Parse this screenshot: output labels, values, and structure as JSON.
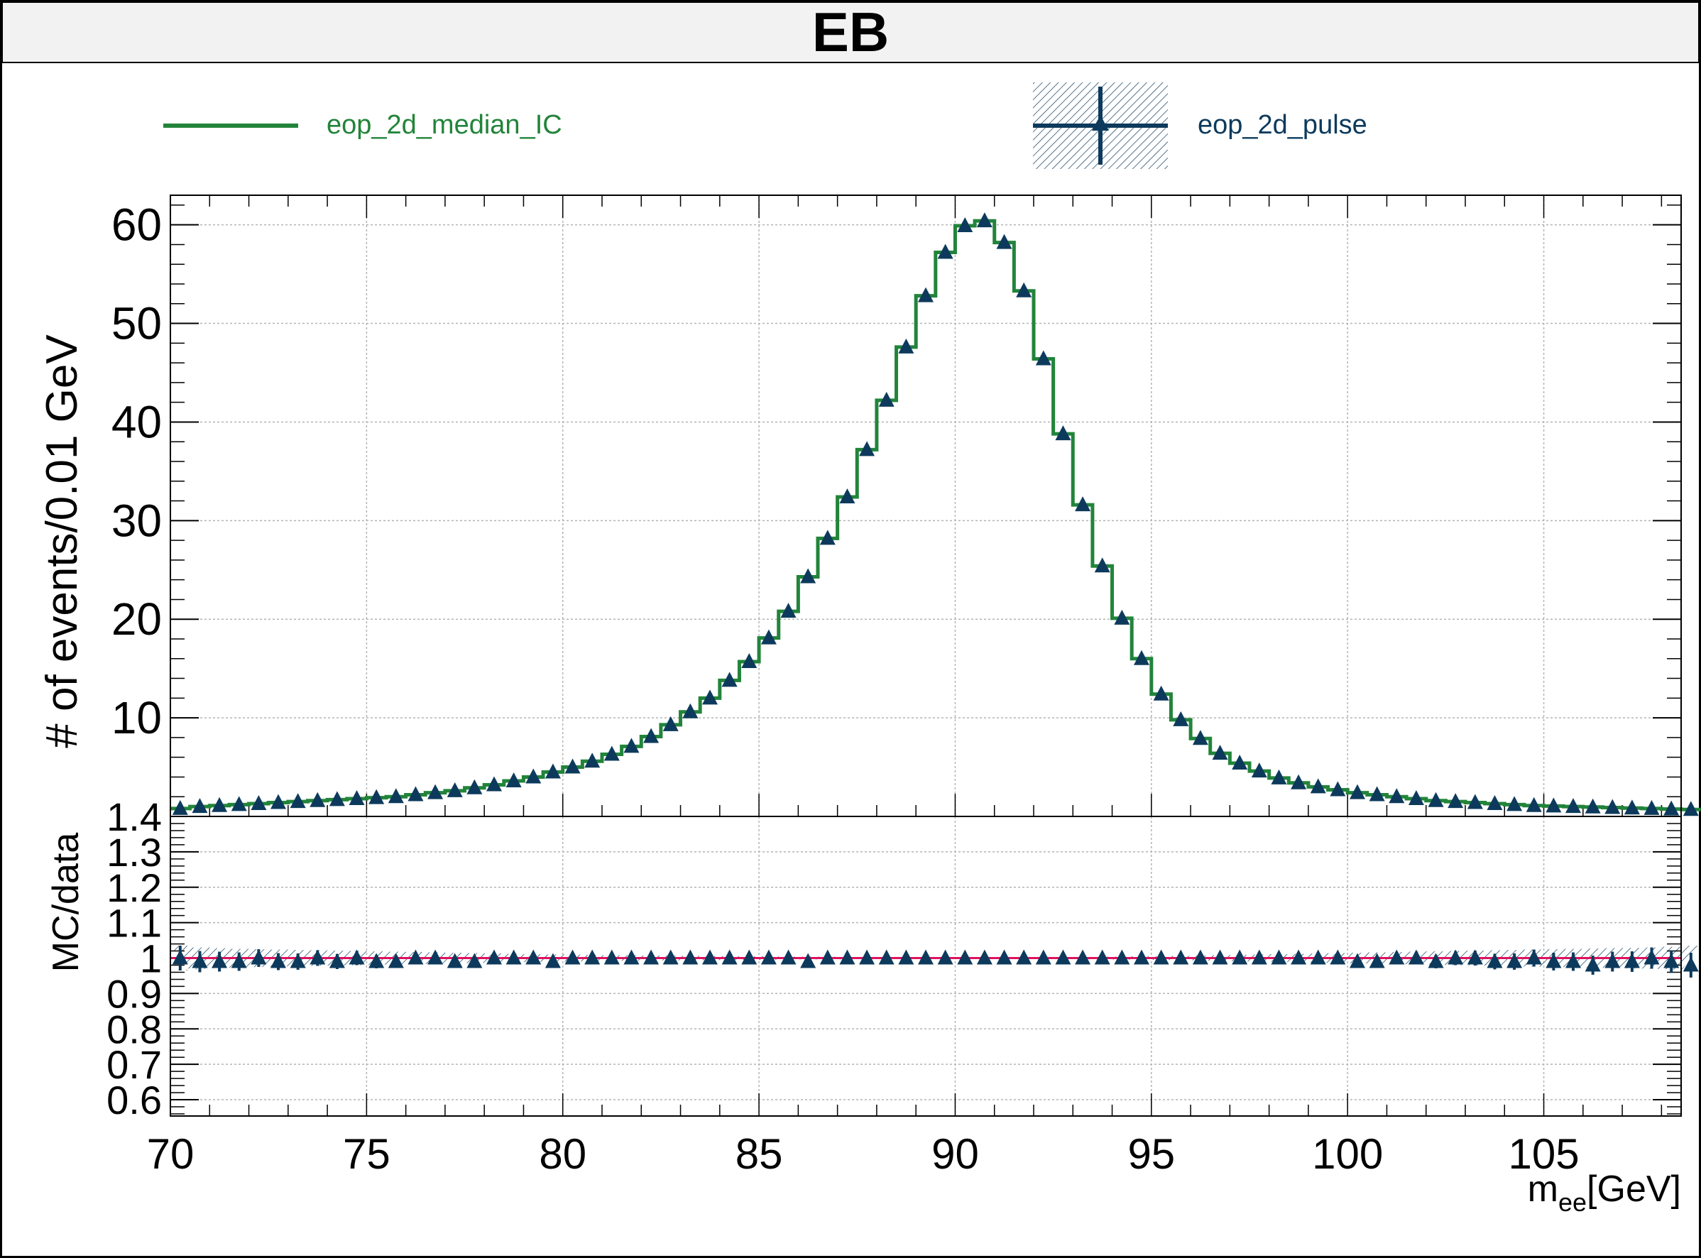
{
  "title": "EB",
  "legend": {
    "items": [
      {
        "label": "eop_2d_median_IC",
        "color": "#22843a",
        "style": "line"
      },
      {
        "label": "eop_2d_pulse",
        "color": "#0d3a5c",
        "style": "marker-band"
      }
    ]
  },
  "colors": {
    "median_ic": "#22843a",
    "pulse": "#0d3a5c",
    "unity_line": "#e0115f",
    "grid": "#b4b4b4",
    "frame": "#000000"
  },
  "chart_data": [
    {
      "type": "line",
      "title": "EB",
      "xlabel": "",
      "ylabel": "# of events/0.01 GeV",
      "xlim": [
        70,
        108.5
      ],
      "ylim": [
        0,
        63
      ],
      "x_ticks": [
        "70",
        "75",
        "80",
        "85",
        "90",
        "95",
        "100",
        "105"
      ],
      "y_ticks": [
        "10",
        "20",
        "30",
        "40",
        "50",
        "60"
      ],
      "grid": true,
      "legend_position": "top",
      "bin_edges_start": 70.0,
      "bin_width": 0.5,
      "series": [
        {
          "name": "eop_2d_median_IC",
          "style": "step",
          "values": [
            0.8,
            1.0,
            1.1,
            1.2,
            1.3,
            1.4,
            1.5,
            1.6,
            1.7,
            1.8,
            1.9,
            2.0,
            2.2,
            2.4,
            2.6,
            2.9,
            3.2,
            3.6,
            4.0,
            4.5,
            5.0,
            5.6,
            6.3,
            7.1,
            8.1,
            9.3,
            10.6,
            12.0,
            13.8,
            15.7,
            18.1,
            20.8,
            24.3,
            28.2,
            32.4,
            37.2,
            42.2,
            47.6,
            52.8,
            57.2,
            59.9,
            60.4,
            58.2,
            53.3,
            46.4,
            38.8,
            31.6,
            25.4,
            20.1,
            16.0,
            12.4,
            9.8,
            7.9,
            6.4,
            5.4,
            4.6,
            3.9,
            3.4,
            3.0,
            2.7,
            2.4,
            2.2,
            2.0,
            1.8,
            1.6,
            1.5,
            1.4,
            1.3,
            1.2,
            1.1,
            1.05,
            1.0,
            0.95,
            0.9,
            0.85,
            0.8,
            0.75,
            0.7
          ]
        },
        {
          "name": "eop_2d_pulse",
          "style": "markers",
          "values": [
            0.8,
            1.0,
            1.1,
            1.2,
            1.3,
            1.4,
            1.5,
            1.6,
            1.7,
            1.8,
            1.9,
            2.0,
            2.2,
            2.4,
            2.6,
            2.9,
            3.2,
            3.6,
            4.0,
            4.5,
            5.0,
            5.6,
            6.3,
            7.1,
            8.1,
            9.3,
            10.6,
            12.0,
            13.8,
            15.7,
            18.1,
            20.8,
            24.3,
            28.2,
            32.4,
            37.2,
            42.2,
            47.6,
            52.8,
            57.2,
            59.9,
            60.4,
            58.2,
            53.3,
            46.4,
            38.8,
            31.6,
            25.4,
            20.1,
            16.0,
            12.4,
            9.8,
            7.9,
            6.4,
            5.4,
            4.6,
            3.9,
            3.4,
            3.0,
            2.7,
            2.4,
            2.2,
            2.0,
            1.8,
            1.6,
            1.5,
            1.4,
            1.3,
            1.2,
            1.1,
            1.05,
            1.0,
            0.95,
            0.9,
            0.85,
            0.8,
            0.75,
            0.7
          ]
        }
      ]
    },
    {
      "type": "scatter",
      "title": "",
      "xlabel": "m_ee[GeV]",
      "xlabel_main": "m",
      "xlabel_sub": "ee",
      "xlabel_unit": "[GeV]",
      "ylabel": "MC/data",
      "xlim": [
        70,
        108.5
      ],
      "ylim": [
        0.55,
        1.4
      ],
      "x_ticks": [
        "70",
        "75",
        "80",
        "85",
        "90",
        "95",
        "100",
        "105"
      ],
      "y_ticks": [
        "0.6",
        "0.7",
        "0.8",
        "0.9",
        "1",
        "1.1",
        "1.2",
        "1.3",
        "1.4"
      ],
      "grid": true,
      "reference_line": 1.0,
      "series": [
        {
          "name": "eop_2d_pulse",
          "style": "markers-with-errors",
          "values": [
            1.0,
            0.99,
            0.99,
            0.99,
            1.0,
            0.99,
            0.99,
            1.0,
            0.99,
            1.0,
            0.99,
            0.99,
            1.0,
            1.0,
            0.99,
            0.99,
            1.0,
            1.0,
            1.0,
            0.99,
            1.0,
            1.0,
            1.0,
            1.0,
            1.0,
            1.0,
            1.0,
            1.0,
            1.0,
            1.0,
            1.0,
            1.0,
            0.99,
            1.0,
            1.0,
            1.0,
            1.0,
            1.0,
            1.0,
            1.0,
            1.0,
            1.0,
            1.0,
            1.0,
            1.0,
            1.0,
            1.0,
            1.0,
            1.0,
            1.0,
            1.0,
            1.0,
            1.0,
            1.0,
            1.0,
            1.0,
            1.0,
            1.0,
            1.0,
            1.0,
            0.99,
            0.99,
            1.0,
            1.0,
            0.99,
            1.0,
            1.0,
            0.99,
            0.99,
            1.0,
            0.99,
            0.99,
            0.98,
            0.99,
            0.99,
            1.0,
            0.99,
            0.98
          ],
          "errors": [
            0.035,
            0.03,
            0.028,
            0.026,
            0.025,
            0.024,
            0.023,
            0.022,
            0.021,
            0.02,
            0.019,
            0.018,
            0.017,
            0.016,
            0.015,
            0.014,
            0.013,
            0.012,
            0.011,
            0.01,
            0.01,
            0.009,
            0.008,
            0.008,
            0.007,
            0.007,
            0.006,
            0.006,
            0.005,
            0.005,
            0.005,
            0.004,
            0.004,
            0.004,
            0.003,
            0.003,
            0.003,
            0.003,
            0.003,
            0.003,
            0.003,
            0.003,
            0.003,
            0.003,
            0.003,
            0.003,
            0.003,
            0.004,
            0.004,
            0.005,
            0.005,
            0.006,
            0.007,
            0.008,
            0.009,
            0.01,
            0.011,
            0.012,
            0.013,
            0.014,
            0.015,
            0.016,
            0.017,
            0.018,
            0.019,
            0.02,
            0.021,
            0.022,
            0.023,
            0.024,
            0.025,
            0.026,
            0.027,
            0.028,
            0.029,
            0.03,
            0.032,
            0.035
          ]
        }
      ]
    }
  ]
}
